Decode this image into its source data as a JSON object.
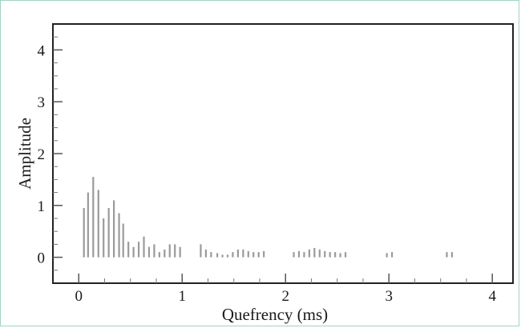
{
  "chart_data": {
    "type": "bar",
    "title": "",
    "xlabel": "Quefrency (ms)",
    "ylabel": "Amplitude",
    "xlim": [
      -0.25,
      4.2
    ],
    "ylim": [
      -0.5,
      4.5
    ],
    "xticks": [
      0,
      1,
      2,
      3,
      4
    ],
    "yticks": [
      0,
      1,
      2,
      3,
      4
    ],
    "grid": false,
    "baseline": 0,
    "series": [
      {
        "x": [
          0.05,
          0.09,
          0.14,
          0.19,
          0.24,
          0.29,
          0.34,
          0.39,
          0.43,
          0.48,
          0.53,
          0.58,
          0.63,
          0.68,
          0.73,
          0.78,
          0.83,
          0.88,
          0.93,
          0.98,
          1.18,
          1.23,
          1.28,
          1.34,
          1.39,
          1.44,
          1.49,
          1.54,
          1.59,
          1.64,
          1.69,
          1.74,
          1.79,
          2.08,
          2.13,
          2.18,
          2.23,
          2.28,
          2.33,
          2.38,
          2.43,
          2.48,
          2.53,
          2.58,
          2.98,
          3.03,
          3.56,
          3.61
        ],
        "values": [
          0.95,
          1.25,
          1.55,
          1.3,
          0.75,
          0.95,
          1.1,
          0.85,
          0.65,
          0.3,
          0.2,
          0.3,
          0.4,
          0.2,
          0.25,
          0.1,
          0.15,
          0.25,
          0.25,
          0.2,
          0.25,
          0.15,
          0.1,
          0.08,
          0.05,
          0.05,
          0.1,
          0.15,
          0.15,
          0.12,
          0.1,
          0.1,
          0.12,
          0.1,
          0.12,
          0.1,
          0.15,
          0.18,
          0.15,
          0.12,
          0.1,
          0.1,
          0.08,
          0.1,
          0.08,
          0.1,
          0.1,
          0.1
        ]
      }
    ]
  }
}
